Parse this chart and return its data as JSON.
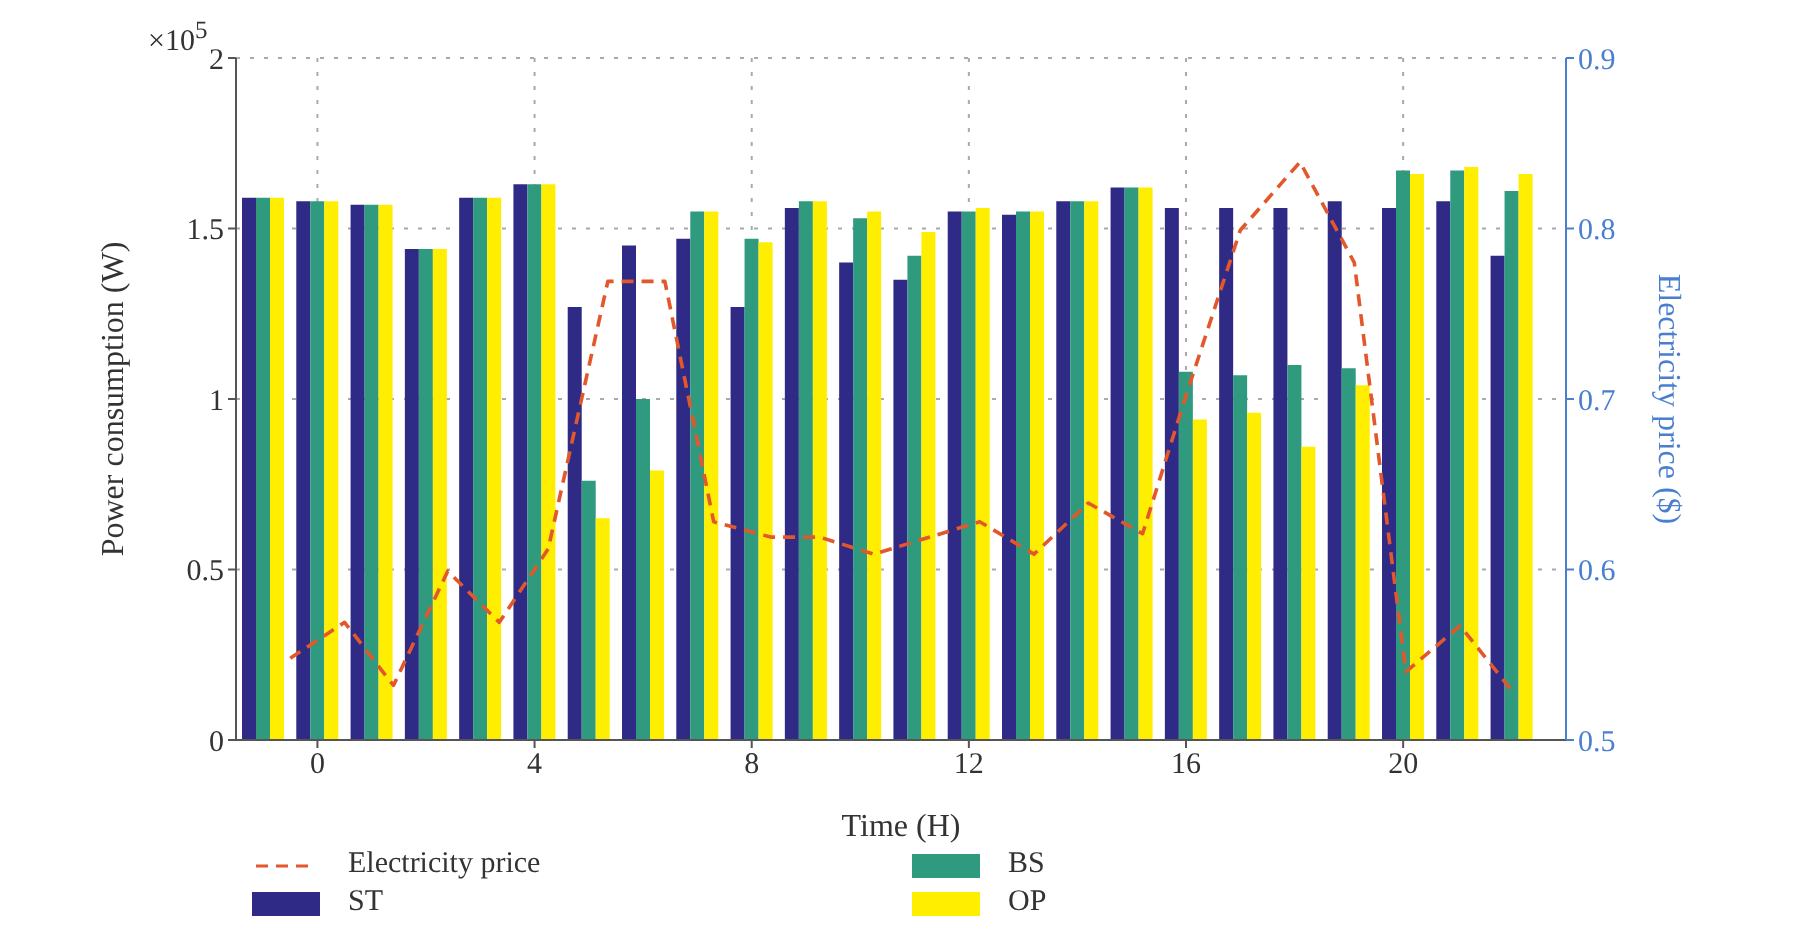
{
  "chart_data": {
    "type": "bar",
    "xlabel": "Time (H)",
    "ylabel": "Power consumption (W)",
    "y2label": "Electricity price ($)",
    "annotations": [
      "×10$^{5}$"
    ],
    "x": [
      -1,
      0,
      1,
      2,
      3,
      4,
      5,
      6,
      7,
      8,
      9,
      10,
      11,
      12,
      13,
      14,
      15,
      16,
      17,
      18,
      19,
      20,
      21,
      22
    ],
    "xlim": [
      -1.5,
      23
    ],
    "xticks": [
      0,
      4,
      8,
      12,
      16,
      20
    ],
    "ylim": [
      0,
      2
    ],
    "yticks": [
      0,
      0.5,
      1,
      1.5,
      2
    ],
    "y2lim": [
      0.5,
      0.9
    ],
    "y2ticks": [
      0.5,
      0.6,
      0.7,
      0.8,
      0.9
    ],
    "grid": true,
    "legend": "bottom",
    "series": [
      {
        "name": "Electricity price",
        "type": "line",
        "axis": "y2",
        "color": "#e2572b",
        "line_style": "dashed",
        "marker": "none",
        "x": [
          -0.5,
          0.5,
          1.4,
          2.4,
          3.35,
          4.25,
          5.35,
          6.4,
          7.3,
          8.35,
          9.25,
          10.25,
          12.2,
          13.2,
          14.2,
          15.2,
          16.0,
          17.0,
          18.1,
          19.1,
          20.05,
          21.05,
          22.0
        ],
        "values": [
          0.548,
          0.569,
          0.532,
          0.599,
          0.569,
          0.612,
          0.769,
          0.769,
          0.628,
          0.619,
          0.619,
          0.609,
          0.628,
          0.609,
          0.639,
          0.621,
          0.702,
          0.799,
          0.839,
          0.78,
          0.54,
          0.567,
          0.529
        ]
      },
      {
        "name": "ST",
        "color": "#2e2a86",
        "values": [
          1.59,
          1.58,
          1.57,
          1.44,
          1.59,
          1.63,
          1.27,
          1.45,
          1.47,
          1.27,
          1.56,
          1.4,
          1.35,
          1.55,
          1.54,
          1.58,
          1.62,
          1.56,
          1.56,
          1.56,
          1.58,
          1.56,
          1.58,
          1.42
        ]
      },
      {
        "name": "BS",
        "color": "#2f9a7e",
        "values": [
          1.59,
          1.58,
          1.57,
          1.44,
          1.59,
          1.63,
          0.76,
          1.0,
          1.55,
          1.47,
          1.58,
          1.53,
          1.42,
          1.55,
          1.55,
          1.58,
          1.62,
          1.08,
          1.07,
          1.1,
          1.09,
          1.67,
          1.67,
          1.61
        ]
      },
      {
        "name": "OP",
        "color": "#ffee00",
        "values": [
          1.59,
          1.58,
          1.57,
          1.44,
          1.59,
          1.63,
          0.65,
          0.79,
          1.55,
          1.46,
          1.58,
          1.55,
          1.49,
          1.56,
          1.55,
          1.58,
          1.62,
          0.94,
          0.96,
          0.86,
          1.04,
          1.66,
          1.68,
          1.66
        ]
      }
    ]
  }
}
